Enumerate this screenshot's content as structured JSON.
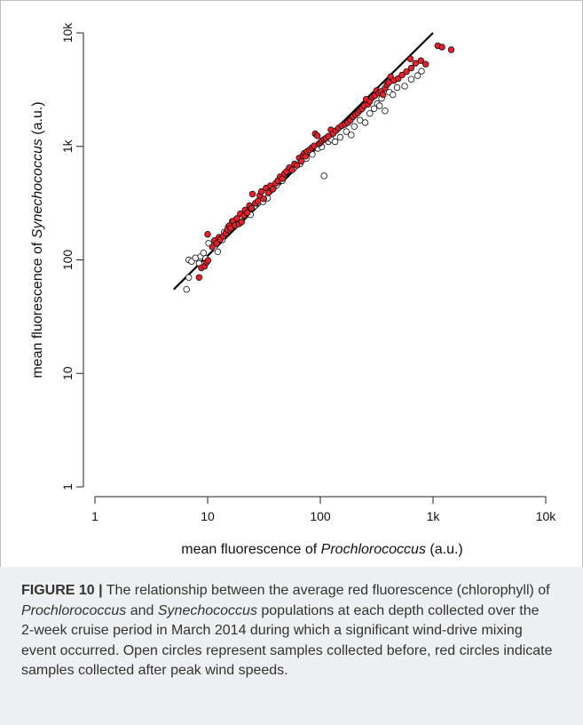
{
  "chart_data": {
    "type": "scatter",
    "xlabel": {
      "prefix": "mean fluorescence of ",
      "italic": "Prochlorococcus",
      "suffix": " (a.u.)"
    },
    "ylabel": {
      "prefix": "mean fluorescence of ",
      "italic": "Synechococcus",
      "suffix": " (a.u.)"
    },
    "x_scale": "log",
    "y_scale": "log",
    "xlim": [
      1,
      10000
    ],
    "ylim": [
      1,
      10000
    ],
    "x_ticks": [
      1,
      10,
      100,
      1000,
      10000
    ],
    "x_tick_labels": [
      "1",
      "10",
      "100",
      "1k",
      "10k"
    ],
    "y_ticks": [
      1,
      10,
      100,
      1000,
      10000
    ],
    "y_tick_labels": [
      "1",
      "10",
      "100",
      "1k",
      "10k"
    ],
    "grid": false,
    "legend": "none",
    "colors": {
      "before_fill": "#ffffff",
      "after_fill": "#e8202a",
      "edge": "#111111",
      "line": "#000000"
    },
    "fit_line": {
      "x": [
        5,
        1000
      ],
      "y": [
        55,
        10000
      ]
    },
    "series": [
      {
        "marker": "open-circle",
        "points": [
          [
            6.5,
            55
          ],
          [
            6.8,
            70
          ],
          [
            6.8,
            100
          ],
          [
            7.2,
            97
          ],
          [
            7.8,
            104
          ],
          [
            8.4,
            93
          ],
          [
            8.7,
            107
          ],
          [
            9.2,
            115
          ],
          [
            9.6,
            103
          ],
          [
            10.2,
            140
          ],
          [
            11.4,
            128
          ],
          [
            12.3,
            118
          ],
          [
            13.5,
            150
          ],
          [
            14,
            175
          ],
          [
            15.2,
            195
          ],
          [
            16.5,
            218
          ],
          [
            18,
            205
          ],
          [
            19.5,
            240
          ],
          [
            22,
            262
          ],
          [
            24,
            250
          ],
          [
            26,
            298
          ],
          [
            28,
            320
          ],
          [
            31,
            325
          ],
          [
            34,
            350
          ],
          [
            37,
            425
          ],
          [
            41,
            455
          ],
          [
            46,
            500
          ],
          [
            50,
            590
          ],
          [
            58,
            640
          ],
          [
            66,
            700
          ],
          [
            75,
            780
          ],
          [
            85,
            850
          ],
          [
            95,
            960
          ],
          [
            103,
            990
          ],
          [
            108,
            550
          ],
          [
            118,
            1100
          ],
          [
            125,
            1150
          ],
          [
            135,
            1100
          ],
          [
            150,
            1200
          ],
          [
            170,
            1350
          ],
          [
            188,
            1260
          ],
          [
            200,
            1500
          ],
          [
            225,
            1700
          ],
          [
            250,
            1620
          ],
          [
            275,
            1950
          ],
          [
            300,
            2150
          ],
          [
            320,
            2380
          ],
          [
            335,
            2280
          ],
          [
            350,
            2650
          ],
          [
            375,
            2060
          ],
          [
            410,
            3000
          ],
          [
            440,
            2850
          ],
          [
            480,
            3300
          ],
          [
            560,
            3400
          ],
          [
            640,
            3900
          ],
          [
            730,
            4200
          ],
          [
            790,
            4600
          ]
        ]
      },
      {
        "marker": "red-circle",
        "points": [
          [
            8.4,
            70
          ],
          [
            8.8,
            85
          ],
          [
            9.4,
            88
          ],
          [
            9.8,
            95
          ],
          [
            10.1,
            99
          ],
          [
            10,
            168
          ],
          [
            11,
            130
          ],
          [
            11.5,
            148
          ],
          [
            12,
            140
          ],
          [
            12.6,
            158
          ],
          [
            13,
            152
          ],
          [
            13.8,
            162
          ],
          [
            14.5,
            172
          ],
          [
            15,
            185
          ],
          [
            15.6,
            200
          ],
          [
            16,
            190
          ],
          [
            16.8,
            220
          ],
          [
            17.5,
            202
          ],
          [
            18.2,
            232
          ],
          [
            19,
            208
          ],
          [
            19.5,
            255
          ],
          [
            20,
            215
          ],
          [
            21,
            245
          ],
          [
            21.5,
            275
          ],
          [
            22.5,
            260
          ],
          [
            23.5,
            300
          ],
          [
            24.5,
            285
          ],
          [
            25,
            380
          ],
          [
            26.5,
            315
          ],
          [
            28,
            330
          ],
          [
            29,
            370
          ],
          [
            30,
            400
          ],
          [
            31.5,
            345
          ],
          [
            33,
            430
          ],
          [
            34.5,
            390
          ],
          [
            36,
            450
          ],
          [
            38,
            420
          ],
          [
            40,
            470
          ],
          [
            42,
            500
          ],
          [
            44,
            540
          ],
          [
            46,
            520
          ],
          [
            48,
            575
          ],
          [
            50,
            600
          ],
          [
            53,
            650
          ],
          [
            56,
            620
          ],
          [
            59,
            700
          ],
          [
            62,
            680
          ],
          [
            65,
            790
          ],
          [
            68,
            740
          ],
          [
            70,
            830
          ],
          [
            72,
            870
          ],
          [
            74,
            820
          ],
          [
            76,
            900
          ],
          [
            80,
            930
          ],
          [
            84,
            970
          ],
          [
            88,
            1010
          ],
          [
            90,
            1290
          ],
          [
            94,
            1240
          ],
          [
            97,
            1050
          ],
          [
            100,
            1080
          ],
          [
            103,
            1120
          ],
          [
            108,
            1150
          ],
          [
            112,
            1180
          ],
          [
            118,
            1230
          ],
          [
            124,
            1400
          ],
          [
            130,
            1300
          ],
          [
            138,
            1380
          ],
          [
            145,
            1450
          ],
          [
            155,
            1520
          ],
          [
            165,
            1560
          ],
          [
            175,
            1620
          ],
          [
            185,
            1700
          ],
          [
            195,
            1820
          ],
          [
            205,
            1900
          ],
          [
            215,
            1980
          ],
          [
            225,
            2080
          ],
          [
            235,
            2150
          ],
          [
            245,
            2280
          ],
          [
            255,
            2600
          ],
          [
            265,
            2350
          ],
          [
            275,
            2500
          ],
          [
            290,
            2700
          ],
          [
            305,
            2800
          ],
          [
            315,
            3100
          ],
          [
            330,
            2950
          ],
          [
            345,
            3050
          ],
          [
            360,
            2850
          ],
          [
            375,
            3250
          ],
          [
            390,
            3500
          ],
          [
            405,
            3650
          ],
          [
            420,
            4100
          ],
          [
            450,
            3800
          ],
          [
            490,
            3950
          ],
          [
            530,
            4250
          ],
          [
            580,
            4550
          ],
          [
            640,
            4900
          ],
          [
            700,
            5400
          ],
          [
            780,
            5700
          ],
          [
            860,
            5300
          ],
          [
            630,
            5900
          ],
          [
            1100,
            7700
          ],
          [
            1200,
            7500
          ],
          [
            1450,
            7100
          ]
        ]
      }
    ]
  },
  "caption": {
    "label": "FIGURE 10 |",
    "text_1": " The relationship between the average red fluorescence (chlorophyll) of ",
    "italic_1": "Prochlorococcus",
    "text_2": " and ",
    "italic_2": "Synechococcus",
    "text_3": " populations at each depth collected over the 2-week cruise period in March 2014 during which a significant wind-drive mixing event occurred. Open circles represent samples collected before, red circles indicate samples collected after peak wind speeds."
  }
}
